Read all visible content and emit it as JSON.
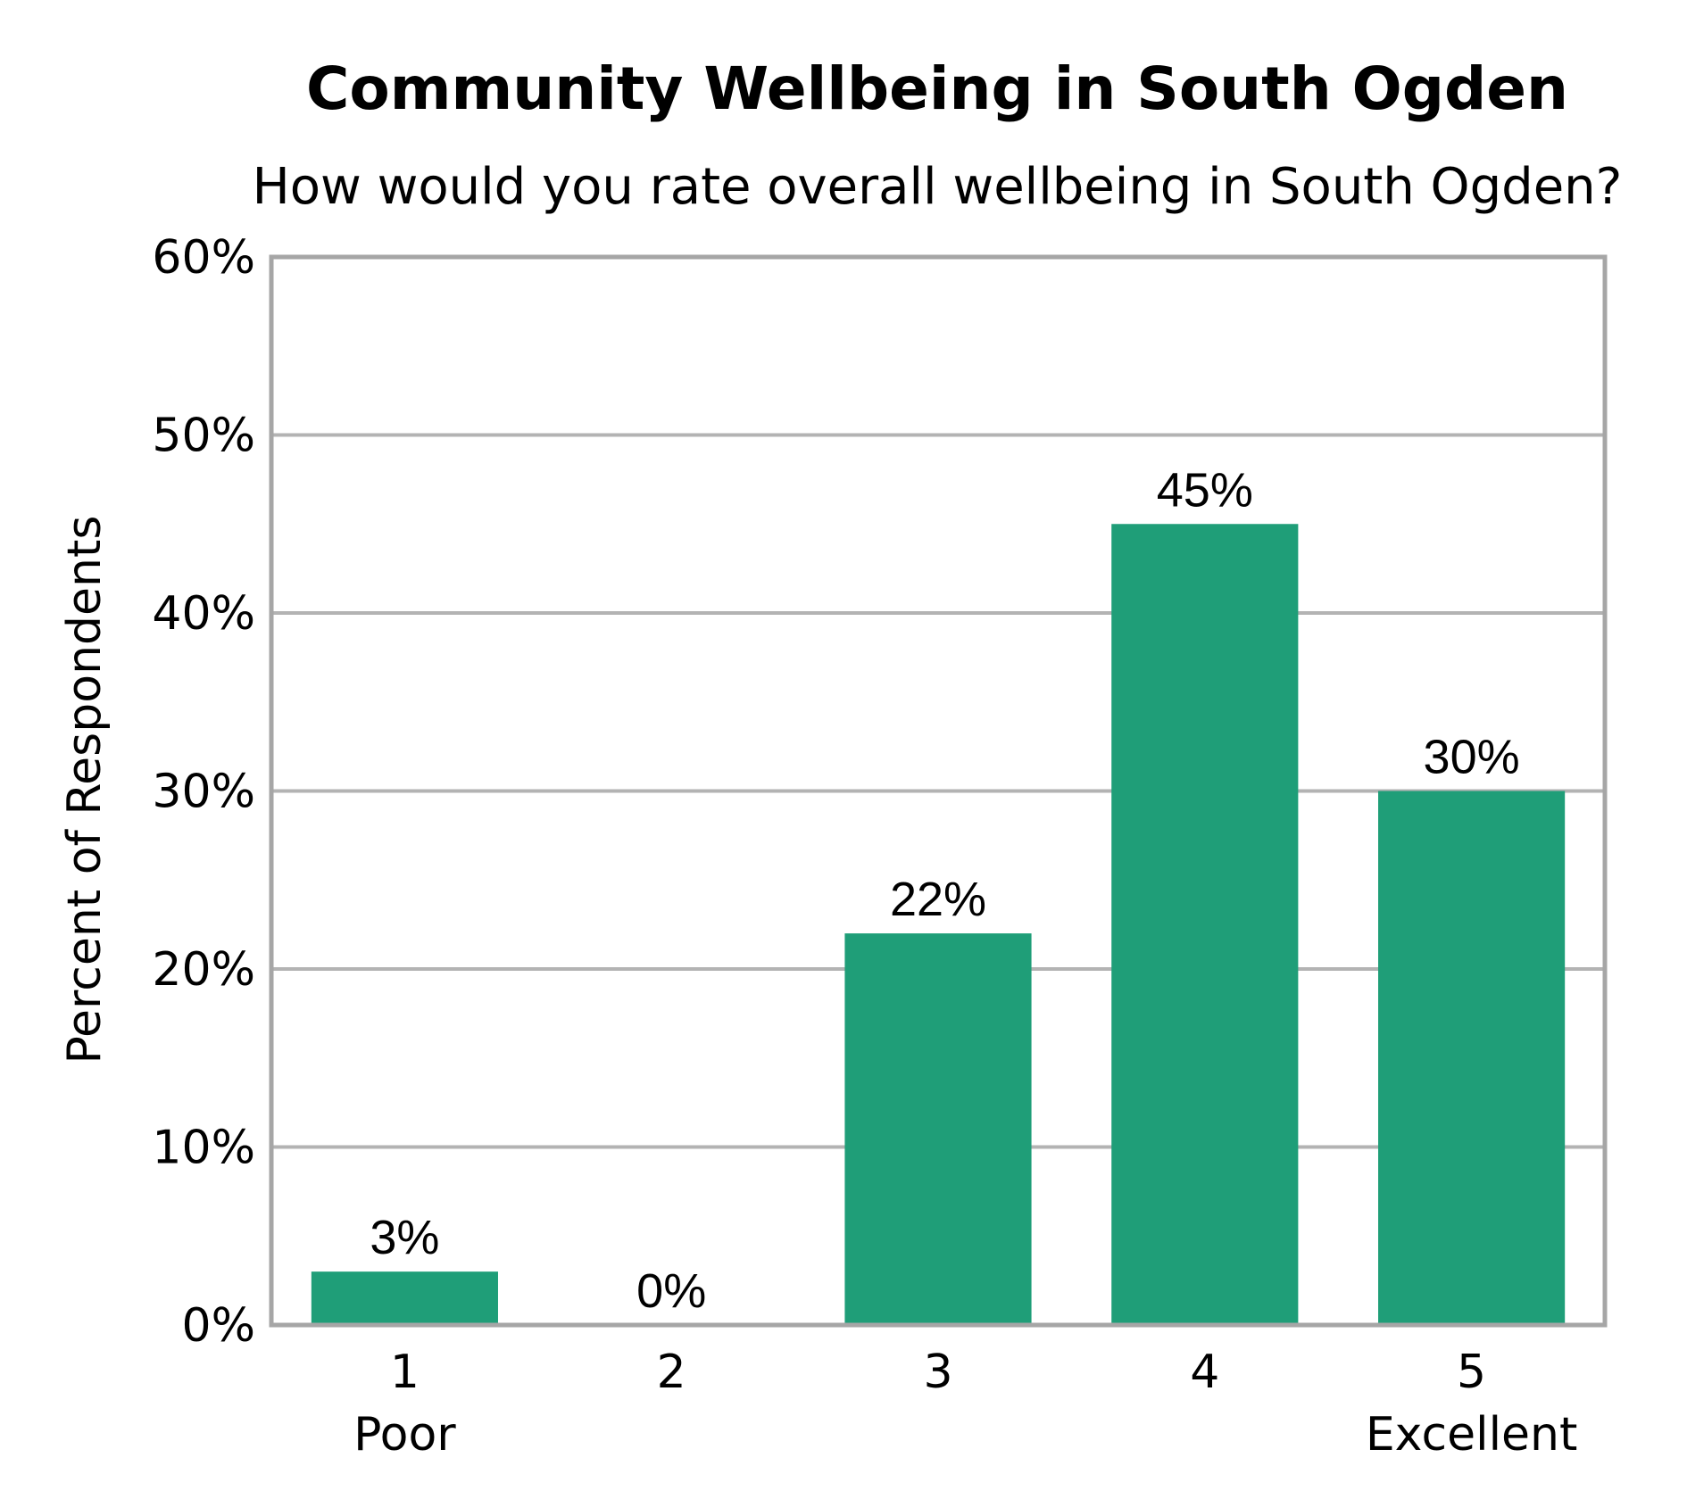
{
  "chart_data": {
    "type": "bar",
    "title": "Community Wellbeing in South Ogden",
    "subtitle": "How would you rate overall wellbeing in South Ogden?",
    "ylabel": "Percent of Respondents",
    "xlabel": "",
    "categories": [
      "1",
      "2",
      "3",
      "4",
      "5"
    ],
    "category_sublabels": [
      "Poor",
      "",
      "",
      "",
      "Excellent"
    ],
    "values": [
      3,
      0,
      22,
      45,
      30
    ],
    "value_labels": [
      "3%",
      "0%",
      "22%",
      "45%",
      "30%"
    ],
    "ylim": [
      0,
      60
    ],
    "yticks": [
      0,
      10,
      20,
      30,
      40,
      50,
      60
    ],
    "ytick_labels": [
      "0%",
      "10%",
      "20%",
      "30%",
      "40%",
      "50%",
      "60%"
    ],
    "grid": true,
    "legend": "none",
    "bar_color": "#1f9e78"
  }
}
